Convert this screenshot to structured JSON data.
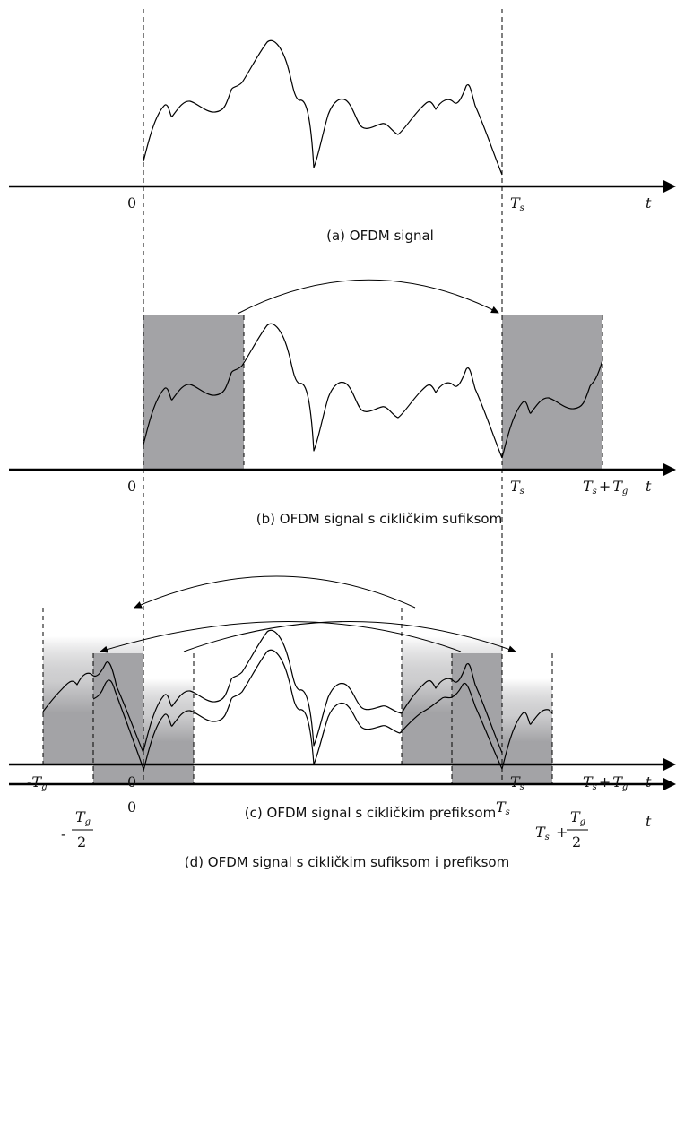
{
  "colors": {
    "axis": "#000000",
    "signal": "#000000",
    "shade": "#a3a3a6",
    "shade_fade_top": "#ffffff",
    "guide": "#000000"
  },
  "panels": [
    {
      "id": "a",
      "caption": "(a) OFDM signal",
      "labels": {
        "zero": "0",
        "ts": "T",
        "ts_sub": "s",
        "t": "t"
      }
    },
    {
      "id": "b",
      "caption": "(b) OFDM signal s cikličkim sufiksom",
      "labels": {
        "zero": "0",
        "ts": "T",
        "ts_sub": "s",
        "tstg_a": "T",
        "tstg_a_sub": "s",
        "tstg_plus": "+",
        "tstg_b": "T",
        "tstg_b_sub": "g",
        "t": "t"
      }
    },
    {
      "id": "c",
      "caption": "(c) OFDM signal s cikličkim prefiksom",
      "labels": {
        "neg_tg_minus": "-",
        "neg_tg": "T",
        "neg_tg_sub": "g",
        "zero": "0",
        "ts": "T",
        "ts_sub": "s",
        "tstg_a": "T",
        "tstg_a_sub": "s",
        "tstg_plus": "+",
        "tstg_b": "T",
        "tstg_b_sub": "g",
        "t": "t"
      }
    },
    {
      "id": "d",
      "caption": "(d) OFDM signal s cikličkim sufiksom i prefiksom",
      "labels": {
        "neg_minus": "-",
        "neg_num": "T",
        "neg_num_sub": "g",
        "neg_den": "2",
        "zero": "0",
        "ts": "T",
        "ts_sub": "s",
        "pos_a": "T",
        "pos_a_sub": "s",
        "pos_plus": "+",
        "pos_num": "T",
        "pos_num_sub": "g",
        "pos_den": "2",
        "t": "t"
      }
    }
  ]
}
